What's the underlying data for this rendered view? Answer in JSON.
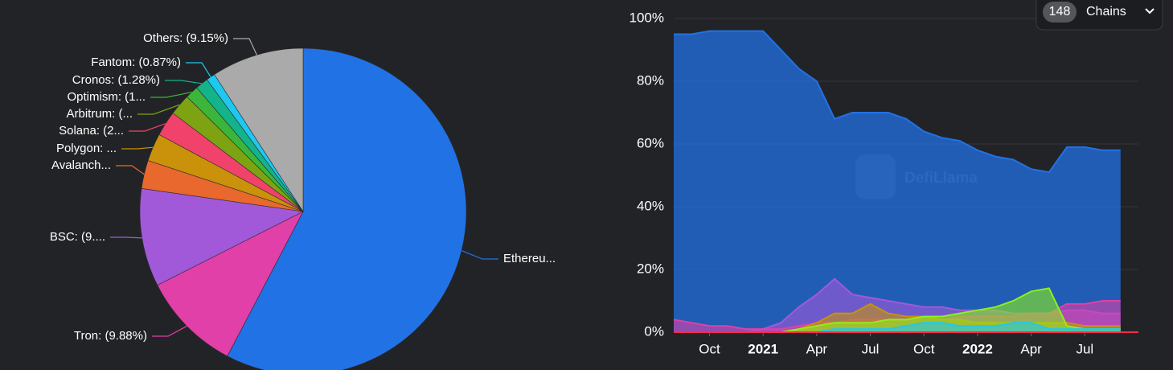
{
  "chart_data": [
    {
      "type": "pie",
      "values": [
        57.7,
        9.88,
        9.7,
        2.8,
        2.75,
        2.5,
        2.1,
        1.3,
        1.28,
        0.87,
        9.15
      ],
      "value_labels": [
        "Ethereu...",
        "Tron: (9.88%)",
        "BSC: (9....",
        "Avalanch...",
        "Polygon: ...",
        "Solana: (2...",
        "Arbitrum: (...",
        "Optimism: (1...",
        "Cronos: (1.28%)",
        "Fantom: (0.87%)",
        "Others: (9.15%)"
      ],
      "colors": [
        "#2172e5",
        "#e040a8",
        "#a259d9",
        "#e8682d",
        "#c9920a",
        "#f0426a",
        "#7ea312",
        "#3cb53a",
        "#14b38a",
        "#1ec8f0",
        "#aaaaaa"
      ]
    },
    {
      "type": "area",
      "watermark": "DefiLlama",
      "x": [
        "2020-08",
        "2020-09",
        "2020-10",
        "2020-11",
        "2020-12",
        "2021-01",
        "2021-02",
        "2021-03",
        "2021-04",
        "2021-05",
        "2021-06",
        "2021-07",
        "2021-08",
        "2021-09",
        "2021-10",
        "2021-11",
        "2021-12",
        "2022-01",
        "2022-02",
        "2022-03",
        "2022-04",
        "2022-05",
        "2022-06",
        "2022-07",
        "2022-08",
        "2022-09"
      ],
      "xlim": [
        "2020-08",
        "2022-10"
      ],
      "xticks": [
        {
          "value": "2020-10",
          "label": "Oct"
        },
        {
          "value": "2021-01",
          "label": "2021"
        },
        {
          "value": "2021-04",
          "label": "Apr"
        },
        {
          "value": "2021-07",
          "label": "Jul"
        },
        {
          "value": "2021-10",
          "label": "Oct"
        },
        {
          "value": "2022-01",
          "label": "2022"
        },
        {
          "value": "2022-04",
          "label": "Apr"
        },
        {
          "value": "2022-07",
          "label": "Jul"
        }
      ],
      "ylim": [
        0,
        100
      ],
      "yticks": [
        {
          "value": 0,
          "label": "0%"
        },
        {
          "value": 20,
          "label": "20%"
        },
        {
          "value": 40,
          "label": "40%"
        },
        {
          "value": 60,
          "label": "60%"
        },
        {
          "value": 80,
          "label": "80%"
        },
        {
          "value": 100,
          "label": "100%"
        }
      ],
      "grid": true,
      "series": [
        {
          "color": "#2172e5",
          "values": [
            95,
            95,
            96,
            96,
            96,
            96,
            90,
            84,
            80,
            68,
            70,
            70,
            70,
            68,
            64,
            62,
            61,
            58,
            56,
            55,
            52,
            51,
            59,
            59,
            58,
            58
          ]
        },
        {
          "color": "#a259d9",
          "values": [
            0,
            0,
            0,
            0,
            0,
            1,
            3,
            8,
            12,
            17,
            12,
            11,
            10,
            9,
            8,
            8,
            7,
            7,
            7,
            6,
            6,
            6,
            7,
            7,
            6,
            6
          ]
        },
        {
          "color": "#e040a8",
          "values": [
            4,
            3,
            2,
            2,
            1,
            1,
            1,
            2,
            3,
            3,
            4,
            4,
            4,
            4,
            4,
            4,
            5,
            5,
            5,
            5,
            6,
            6,
            9,
            9,
            10,
            10
          ]
        },
        {
          "color": "#c9920a",
          "values": [
            0,
            0,
            0,
            0,
            0,
            0,
            0,
            1,
            3,
            6,
            6,
            9,
            6,
            5,
            5,
            4,
            4,
            3,
            3,
            3,
            3,
            3,
            3,
            2,
            2,
            2
          ]
        },
        {
          "color": "#8cf01a",
          "values": [
            0,
            0,
            0,
            0,
            0,
            0,
            0,
            1,
            2,
            3,
            3,
            3,
            4,
            4,
            5,
            5,
            6,
            7,
            8,
            10,
            13,
            14,
            2,
            1,
            1,
            1
          ]
        },
        {
          "color": "#1ec8f0",
          "values": [
            0,
            0,
            0,
            0,
            0,
            0,
            0,
            0,
            0,
            1,
            1,
            1,
            1,
            2,
            3,
            3,
            2,
            2,
            2,
            3,
            3,
            1,
            1,
            1,
            1,
            1
          ]
        }
      ]
    }
  ],
  "chains_button": {
    "count": 148,
    "label": "Chains"
  }
}
